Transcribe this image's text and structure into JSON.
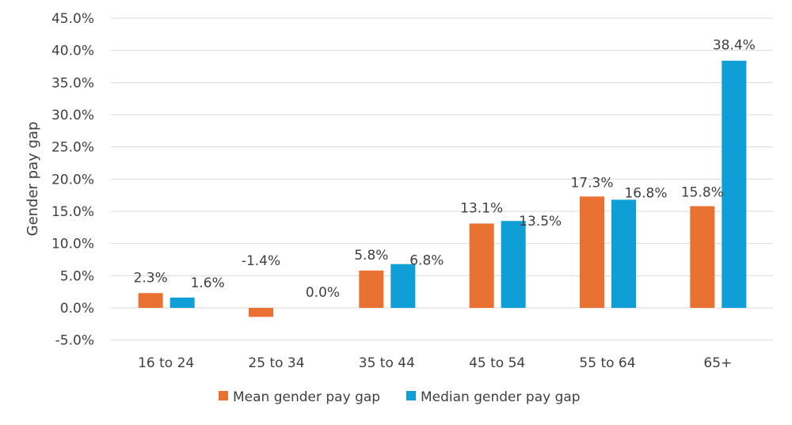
{
  "chart_data": {
    "type": "bar",
    "title": "",
    "xlabel": "",
    "ylabel": "Gender pay gap",
    "ylim": [
      -5,
      45
    ],
    "ytick_step": 5,
    "ytick_labels": [
      "-5.0%",
      "0.0%",
      "5.0%",
      "10.0%",
      "15.0%",
      "20.0%",
      "25.0%",
      "30.0%",
      "35.0%",
      "40.0%",
      "45.0%"
    ],
    "grid": true,
    "legend_position": "bottom",
    "categories": [
      "16 to 24",
      "25 to 34",
      "35 to 44",
      "45 to 54",
      "55 to 64",
      "65+"
    ],
    "series": [
      {
        "name": "Mean gender pay gap",
        "color": "#E97132",
        "values": [
          2.3,
          -1.4,
          5.8,
          13.1,
          17.3,
          15.8
        ],
        "labels": [
          "2.3%",
          "-1.4%",
          "5.8%",
          "13.1%",
          "17.3%",
          "15.8%"
        ]
      },
      {
        "name": "Median gender pay gap",
        "color": "#0F9ED5",
        "values": [
          1.6,
          0.0,
          6.8,
          13.5,
          16.8,
          38.4
        ],
        "labels": [
          "1.6%",
          "0.0%",
          "6.8%",
          "13.5%",
          "16.8%",
          "38.4%"
        ]
      }
    ]
  }
}
